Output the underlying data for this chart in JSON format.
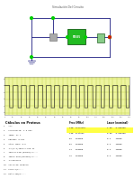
{
  "bg_color": "#ffffff",
  "osc_bg": "#eef5a0",
  "osc_grid_color": "#c8d855",
  "wire_color": "#1a1a80",
  "chip_color": "#22bb22",
  "green_dot": "#00cc00",
  "red_dot": "#cc2200",
  "gray_comp": "#aaaaaa",
  "calc_title": "Cálculos en Proteus",
  "highlight_color": "#ffff44",
  "table_header_color": "#333333",
  "n_vlines": 30,
  "n_hlines": 5,
  "wave_cycles": 15
}
